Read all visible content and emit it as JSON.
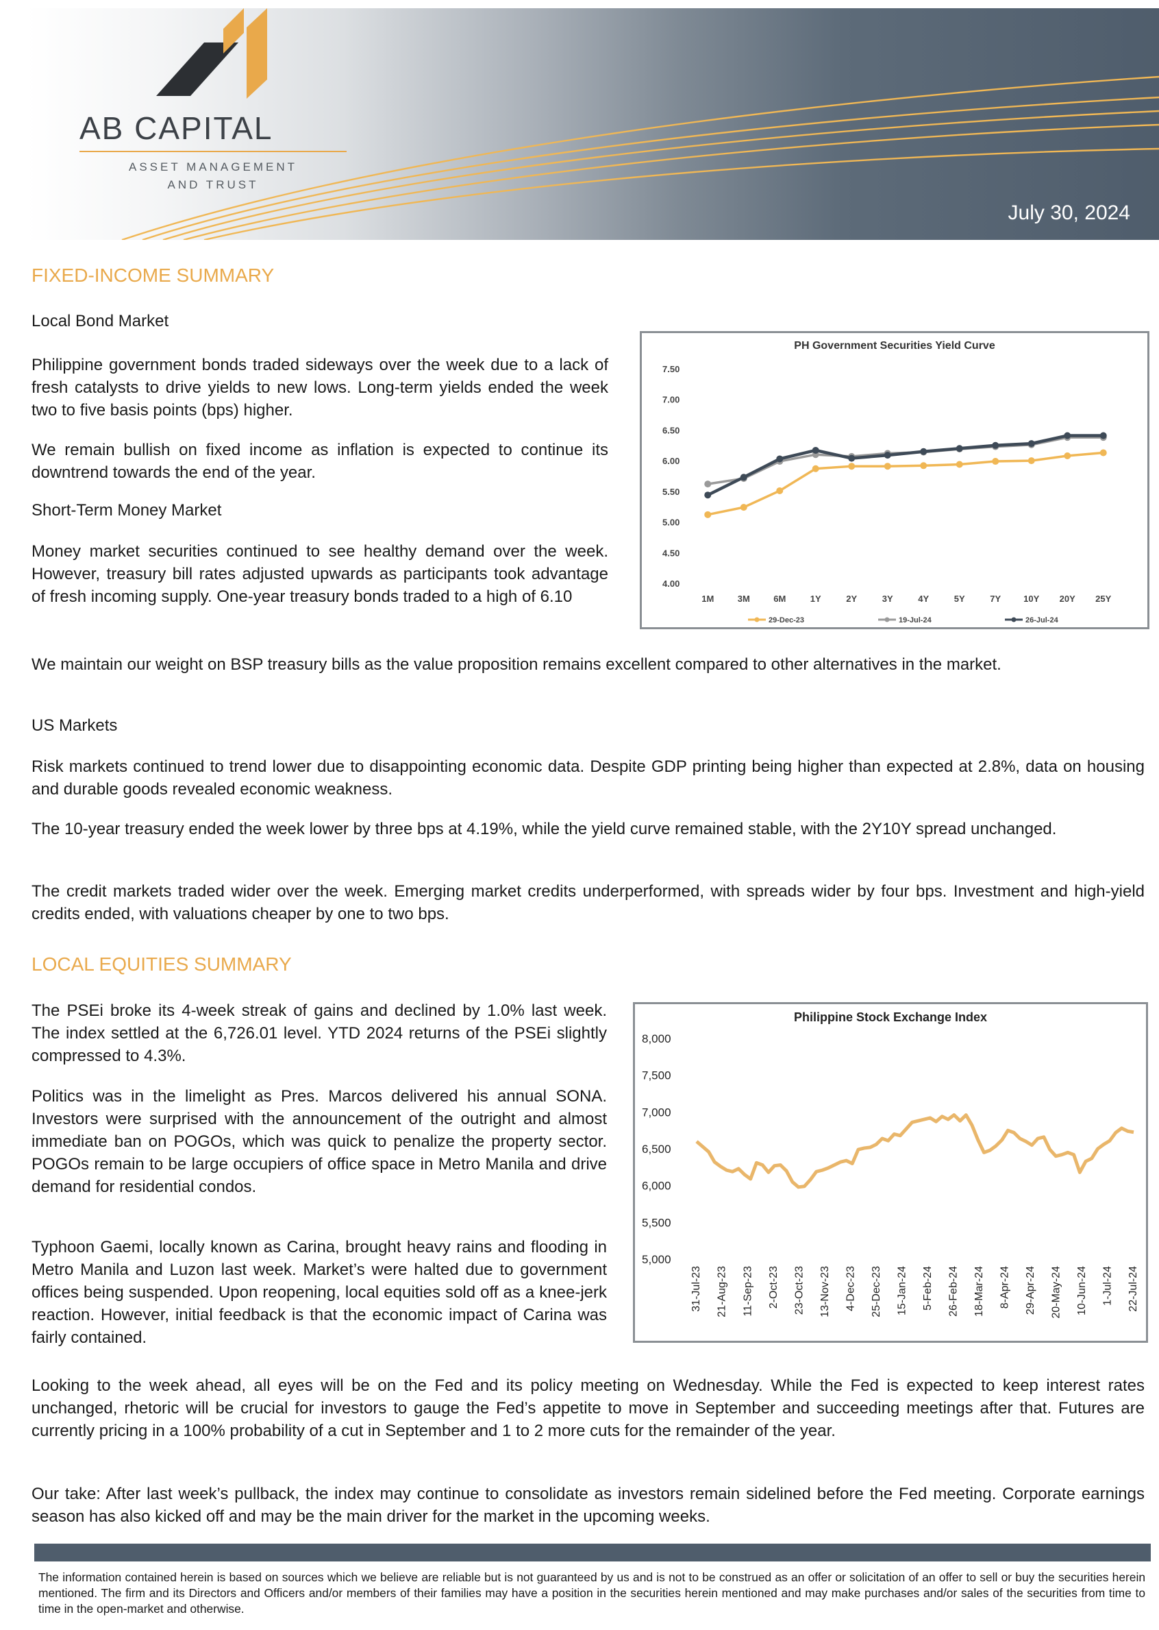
{
  "header": {
    "brand_name": "AB CAPITAL",
    "brand_tagline_line1": "ASSET MANAGEMENT",
    "brand_tagline_line2": "AND TRUST",
    "date": "July 30, 2024"
  },
  "fixed_income": {
    "title": "FIXED-INCOME SUMMARY",
    "local_bond_heading": "Local Bond Market",
    "p1": "Philippine government bonds traded sideways over the week due to a lack of fresh catalysts to drive yields to new lows. Long-term yields ended the week two to five basis points (bps) higher.",
    "p2": "We remain bullish on fixed income as inflation is expected to continue its downtrend towards the end of the year.",
    "money_market_heading": "Short-Term Money Market",
    "p3": "Money market securities continued to see healthy demand over the week. However, treasury bill rates adjusted upwards as participants took advantage of fresh incoming supply. One-year treasury bonds traded to a high of 6.10",
    "p4": "We maintain our weight on BSP treasury bills as the value proposition remains excellent compared to other alternatives in the market.",
    "us_heading": "US Markets",
    "p5": "Risk markets continued to trend lower due to disappointing economic data. Despite GDP printing being higher than expected at 2.8%, data on housing and durable goods revealed economic weakness.",
    "p6": "The 10-year treasury ended the week lower by three bps at 4.19%, while the yield curve remained stable, with the 2Y10Y spread unchanged.",
    "p7": "The credit markets traded wider over the week. Emerging market credits underperformed, with spreads wider by four bps. Investment and high-yield credits ended, with valuations cheaper by one to two bps."
  },
  "equities": {
    "title": "LOCAL EQUITIES SUMMARY",
    "p1": "The PSEi broke its 4-week streak of gains and declined by 1.0% last week. The index settled at the 6,726.01 level. YTD 2024 returns of the PSEi slightly compressed to 4.3%.",
    "p2": "Politics was in the limelight as Pres. Marcos delivered his annual SONA. Investors were surprised with the announcement of the outright and almost immediate ban on POGOs, which was quick to penalize the property sector. POGOs remain to be large occupiers of office space in Metro Manila and drive demand for residential condos.",
    "p3": "Typhoon Gaemi, locally known as Carina, brought heavy rains and flooding in Metro Manila and Luzon last week. Market’s were halted due to government offices being suspended. Upon reopening, local equities sold off as a knee-jerk reaction. However, initial feedback is that the economic impact of Carina was fairly contained.",
    "p4": "Looking to the week ahead, all eyes will be on the Fed and its policy meeting on Wednesday.  While the Fed is expected to keep interest rates unchanged, rhetoric will be crucial for investors to gauge the Fed’s appetite to move in September and succeeding meetings after that.  Futures are currently pricing in a 100% probability of a cut in September and 1 to 2 more cuts for the remainder of the year.",
    "p5": "Our take: After last week’s pullback, the index may continue to consolidate as investors remain sidelined before the Fed meeting.  Corporate earnings season has also kicked off and may be the main driver for the market in the upcoming weeks."
  },
  "footer": {
    "disclaimer": "The information contained herein is based on sources which we believe are reliable but is not guaranteed by us and is not to be construed as an offer or solicitation of an offer to sell or buy the securities herein mentioned. The firm and its Directors and Officers and/or members of their families may have a position in the securities herein mentioned and may make purchases and/or sales of the securities from time to time in the open-market and otherwise."
  },
  "colors": {
    "accent": "#e9a94b",
    "header_dark": "#4f5d6c",
    "series_dec": "#f0b755",
    "series_jul19": "#9a9a9a",
    "series_jul26": "#3e4a57"
  },
  "chart_data": [
    {
      "type": "line",
      "title": "PH Government Securities Yield Curve",
      "categories": [
        "1M",
        "3M",
        "6M",
        "1Y",
        "2Y",
        "3Y",
        "4Y",
        "5Y",
        "7Y",
        "10Y",
        "20Y",
        "25Y"
      ],
      "ylim": [
        4.0,
        7.5
      ],
      "yticks": [
        "7.50",
        "7.00",
        "6.50",
        "6.00",
        "5.50",
        "5.00",
        "4.50",
        "4.00"
      ],
      "series": [
        {
          "name": "29-Dec-23",
          "color": "#f0b755",
          "values": [
            5.12,
            5.24,
            5.51,
            5.87,
            5.91,
            5.91,
            5.92,
            5.94,
            5.99,
            6.0,
            6.08,
            6.13
          ]
        },
        {
          "name": "19-Jul-24",
          "color": "#9a9a9a",
          "values": [
            5.62,
            5.71,
            5.99,
            6.1,
            6.07,
            6.12,
            6.14,
            6.19,
            6.23,
            6.26,
            6.38,
            6.38
          ]
        },
        {
          "name": "26-Jul-24",
          "color": "#3e4a57",
          "values": [
            5.44,
            5.73,
            6.03,
            6.17,
            6.04,
            6.09,
            6.15,
            6.2,
            6.25,
            6.28,
            6.41,
            6.41
          ]
        }
      ]
    },
    {
      "type": "line",
      "title": "Philippine Stock Exchange Index",
      "ylim": [
        5000,
        8000
      ],
      "yticks": [
        "8,000",
        "7,500",
        "7,000",
        "6,500",
        "6,000",
        "5,500",
        "5,000"
      ],
      "xticks": [
        "31-Jul-23",
        "21-Aug-23",
        "11-Sep-23",
        "2-Oct-23",
        "23-Oct-23",
        "13-Nov-23",
        "4-Dec-23",
        "25-Dec-23",
        "15-Jan-24",
        "5-Feb-24",
        "26-Feb-24",
        "18-Mar-24",
        "8-Apr-24",
        "29-Apr-24",
        "20-May-24",
        "10-Jun-24",
        "1-Jul-24",
        "22-Jul-24"
      ],
      "series": [
        {
          "name": "PSEi",
          "color": "#e9b66a",
          "values": [
            6600,
            6530,
            6460,
            6320,
            6260,
            6210,
            6190,
            6230,
            6150,
            6090,
            6310,
            6280,
            6180,
            6270,
            6280,
            6200,
            6050,
            5980,
            5990,
            6080,
            6190,
            6210,
            6240,
            6280,
            6320,
            6340,
            6300,
            6490,
            6510,
            6520,
            6560,
            6640,
            6610,
            6700,
            6680,
            6770,
            6860,
            6880,
            6900,
            6920,
            6870,
            6940,
            6900,
            6960,
            6880,
            6960,
            6820,
            6620,
            6450,
            6480,
            6540,
            6620,
            6750,
            6720,
            6640,
            6600,
            6550,
            6640,
            6660,
            6490,
            6400,
            6420,
            6450,
            6420,
            6180,
            6330,
            6370,
            6500,
            6560,
            6610,
            6720,
            6780,
            6740,
            6726
          ]
        }
      ]
    }
  ]
}
